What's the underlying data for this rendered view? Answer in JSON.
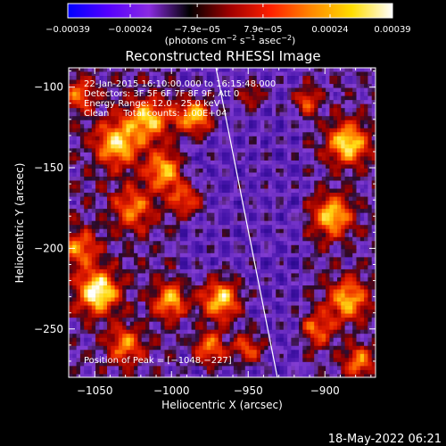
{
  "chart_data": {
    "type": "heatmap",
    "title": "Reconstructed RHESSI Image",
    "xlabel": "Heliocentric X (arcsec)",
    "ylabel": "Heliocentric Y (arcsec)",
    "xlim": [
      -1067,
      -867
    ],
    "ylim": [
      -280,
      -88
    ],
    "x_ticks": [
      {
        "value": -1050,
        "label": "−1050"
      },
      {
        "value": -1000,
        "label": "−1000"
      },
      {
        "value": -950,
        "label": "−950"
      },
      {
        "value": -900,
        "label": "−900"
      }
    ],
    "y_ticks": [
      {
        "value": -100,
        "label": "−100"
      },
      {
        "value": -150,
        "label": "−150"
      },
      {
        "value": -200,
        "label": "−200"
      },
      {
        "value": -250,
        "label": "−250"
      }
    ],
    "colorbar": {
      "range": [
        -0.00039,
        0.00039
      ],
      "tick_values": [
        -0.00039,
        -0.00024,
        -7.9e-05,
        7.9e-05,
        0.00024,
        0.00039
      ],
      "tick_labels": [
        "−0.00039",
        "−0.00024",
        "−7.9e−05",
        "7.9e−05",
        "0.00024",
        "0.00039"
      ],
      "units_main": "(photons cm",
      "units_exp1": "−2",
      "units_mid": " s",
      "units_exp2": "−1",
      "units_end": " asec",
      "units_exp3": "−2",
      "units_close": ")",
      "colors": [
        "#0000ff",
        "#5500ff",
        "#8a2be2",
        "#000000",
        "#a00000",
        "#ff2000",
        "#ff8800",
        "#ffdd00",
        "#ffffff"
      ]
    },
    "annotations": [
      "22-Jan-2015 16:10:00.000 to 16:15:48.000",
      "Detectors: 3F 5F 6F 7F 8F 9F, Att 0",
      "Energy Range: 12.0 - 25.0 keV",
      "Clean     Total counts: 1.00E+04"
    ],
    "peak_label": "Position of Peak = [−1048,−227]",
    "peak": [
      -1048,
      -227
    ],
    "limb_line": {
      "points": [
        [
          -971,
          -88
        ],
        [
          -931,
          -280
        ]
      ]
    },
    "bright_sources": [
      {
        "x": -1048,
        "y": -227,
        "r": 9,
        "level": 1.0
      },
      {
        "x": -1035,
        "y": -135,
        "r": 10,
        "level": 0.8
      },
      {
        "x": -1015,
        "y": -120,
        "r": 9,
        "level": 0.75
      },
      {
        "x": -1005,
        "y": -152,
        "r": 8,
        "level": 0.7
      },
      {
        "x": -1025,
        "y": -175,
        "r": 9,
        "level": 0.6
      },
      {
        "x": -985,
        "y": -118,
        "r": 8,
        "level": 0.85
      },
      {
        "x": -990,
        "y": -170,
        "r": 7,
        "level": 0.6
      },
      {
        "x": -1000,
        "y": -232,
        "r": 8,
        "level": 0.7
      },
      {
        "x": -968,
        "y": -232,
        "r": 9,
        "level": 0.9
      },
      {
        "x": -975,
        "y": -262,
        "r": 8,
        "level": 0.65
      },
      {
        "x": -1030,
        "y": -260,
        "r": 8,
        "level": 0.6
      },
      {
        "x": -950,
        "y": -262,
        "r": 7,
        "level": 0.55
      },
      {
        "x": -948,
        "y": -105,
        "r": 6,
        "level": 0.4
      },
      {
        "x": -885,
        "y": -135,
        "r": 9,
        "level": 0.9
      },
      {
        "x": -895,
        "y": -180,
        "r": 9,
        "level": 0.8
      },
      {
        "x": -885,
        "y": -232,
        "r": 9,
        "level": 0.75
      },
      {
        "x": -878,
        "y": -270,
        "r": 7,
        "level": 0.6
      },
      {
        "x": -905,
        "y": -250,
        "r": 7,
        "level": 0.55
      },
      {
        "x": -912,
        "y": -108,
        "r": 6,
        "level": 0.5
      },
      {
        "x": -1060,
        "y": -105,
        "r": 7,
        "level": 0.55
      },
      {
        "x": -1060,
        "y": -200,
        "r": 8,
        "level": 0.6
      }
    ]
  },
  "footer": {
    "timestamp": "18-May-2022 06:21"
  }
}
